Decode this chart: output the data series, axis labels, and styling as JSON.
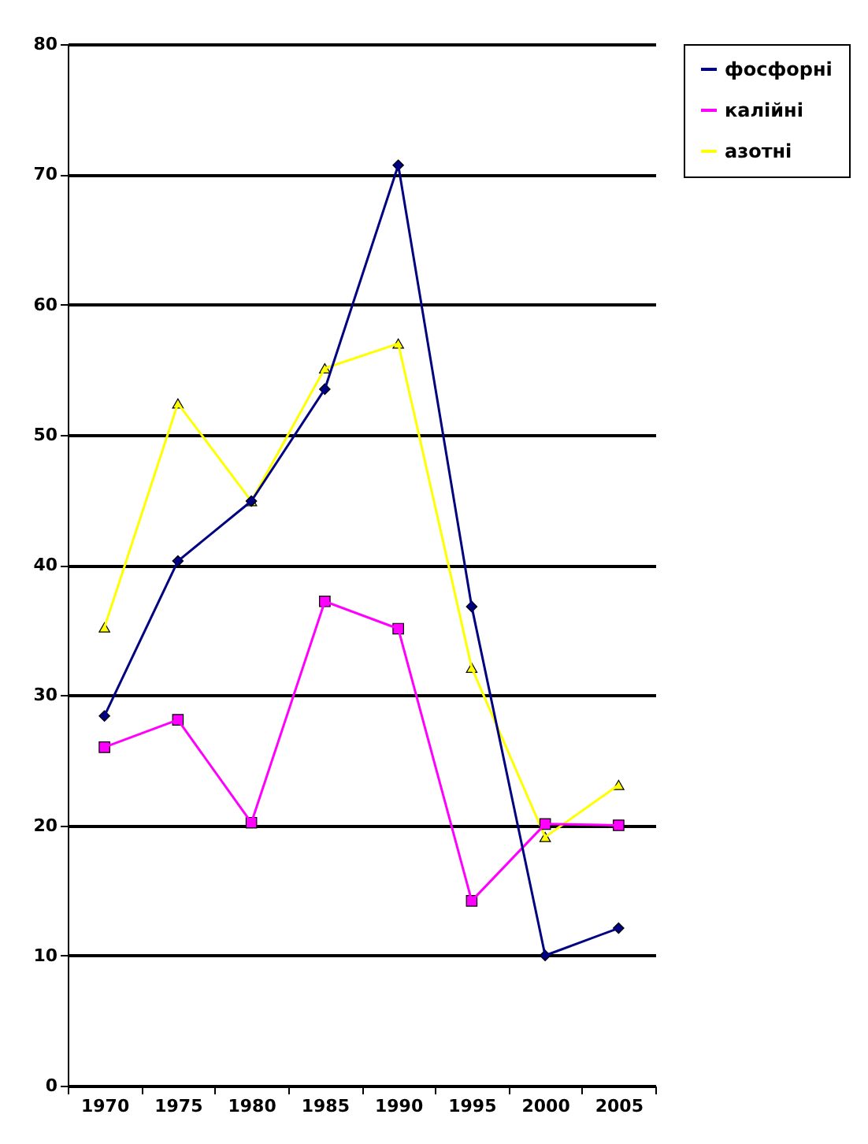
{
  "chart_data": {
    "type": "line",
    "categories": [
      "1970",
      "1975",
      "1980",
      "1985",
      "1990",
      "1995",
      "2000",
      "2005"
    ],
    "series": [
      {
        "name": "фосфорні",
        "color": "#000080",
        "marker": "diamond",
        "values": [
          28.4,
          40.3,
          44.9,
          53.5,
          70.7,
          36.8,
          10,
          12.1
        ]
      },
      {
        "name": "калійні",
        "color": "#ff00ff",
        "marker": "square",
        "values": [
          26,
          28.1,
          20.2,
          37.2,
          35.1,
          14.2,
          20.1,
          20
        ]
      },
      {
        "name": "азотні",
        "color": "#ffff00",
        "marker": "triangle",
        "values": [
          35.2,
          52.4,
          44.9,
          55.1,
          57,
          32.1,
          19.1,
          23.1
        ]
      }
    ],
    "ylim": [
      0,
      80
    ],
    "yticks": [
      0,
      10,
      20,
      30,
      40,
      50,
      60,
      70,
      80
    ],
    "grid": "y",
    "legend": "right"
  }
}
